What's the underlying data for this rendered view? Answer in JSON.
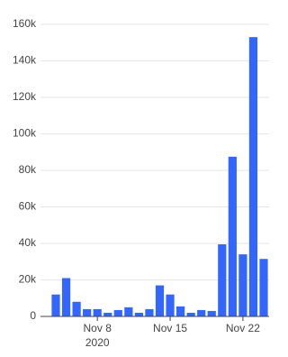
{
  "chart_data": {
    "type": "bar",
    "categories": [
      null,
      null,
      null,
      null,
      "Nov 8\n2020",
      null,
      null,
      null,
      null,
      null,
      null,
      "Nov 15",
      null,
      null,
      null,
      null,
      null,
      null,
      "Nov 22",
      null,
      null
    ],
    "values": [
      12000,
      21000,
      8000,
      4000,
      4000,
      2000,
      3500,
      5000,
      2000,
      4000,
      17000,
      12000,
      5500,
      2000,
      3500,
      3000,
      39500,
      87500,
      34000,
      153000,
      31500
    ],
    "color": "#3366ff",
    "ylim": [
      0,
      160000
    ],
    "yticks": [
      0,
      {
        "value": 20000,
        "label": "20k"
      },
      {
        "value": 40000,
        "label": "40k"
      },
      {
        "value": 60000,
        "label": "60k"
      },
      {
        "value": 80000,
        "label": "80k"
      },
      {
        "value": 100000,
        "label": "100k"
      },
      {
        "value": 120000,
        "label": "120k"
      },
      {
        "value": 140000,
        "label": "140k"
      },
      {
        "value": 160000,
        "label": "160k"
      }
    ],
    "grid": true
  }
}
